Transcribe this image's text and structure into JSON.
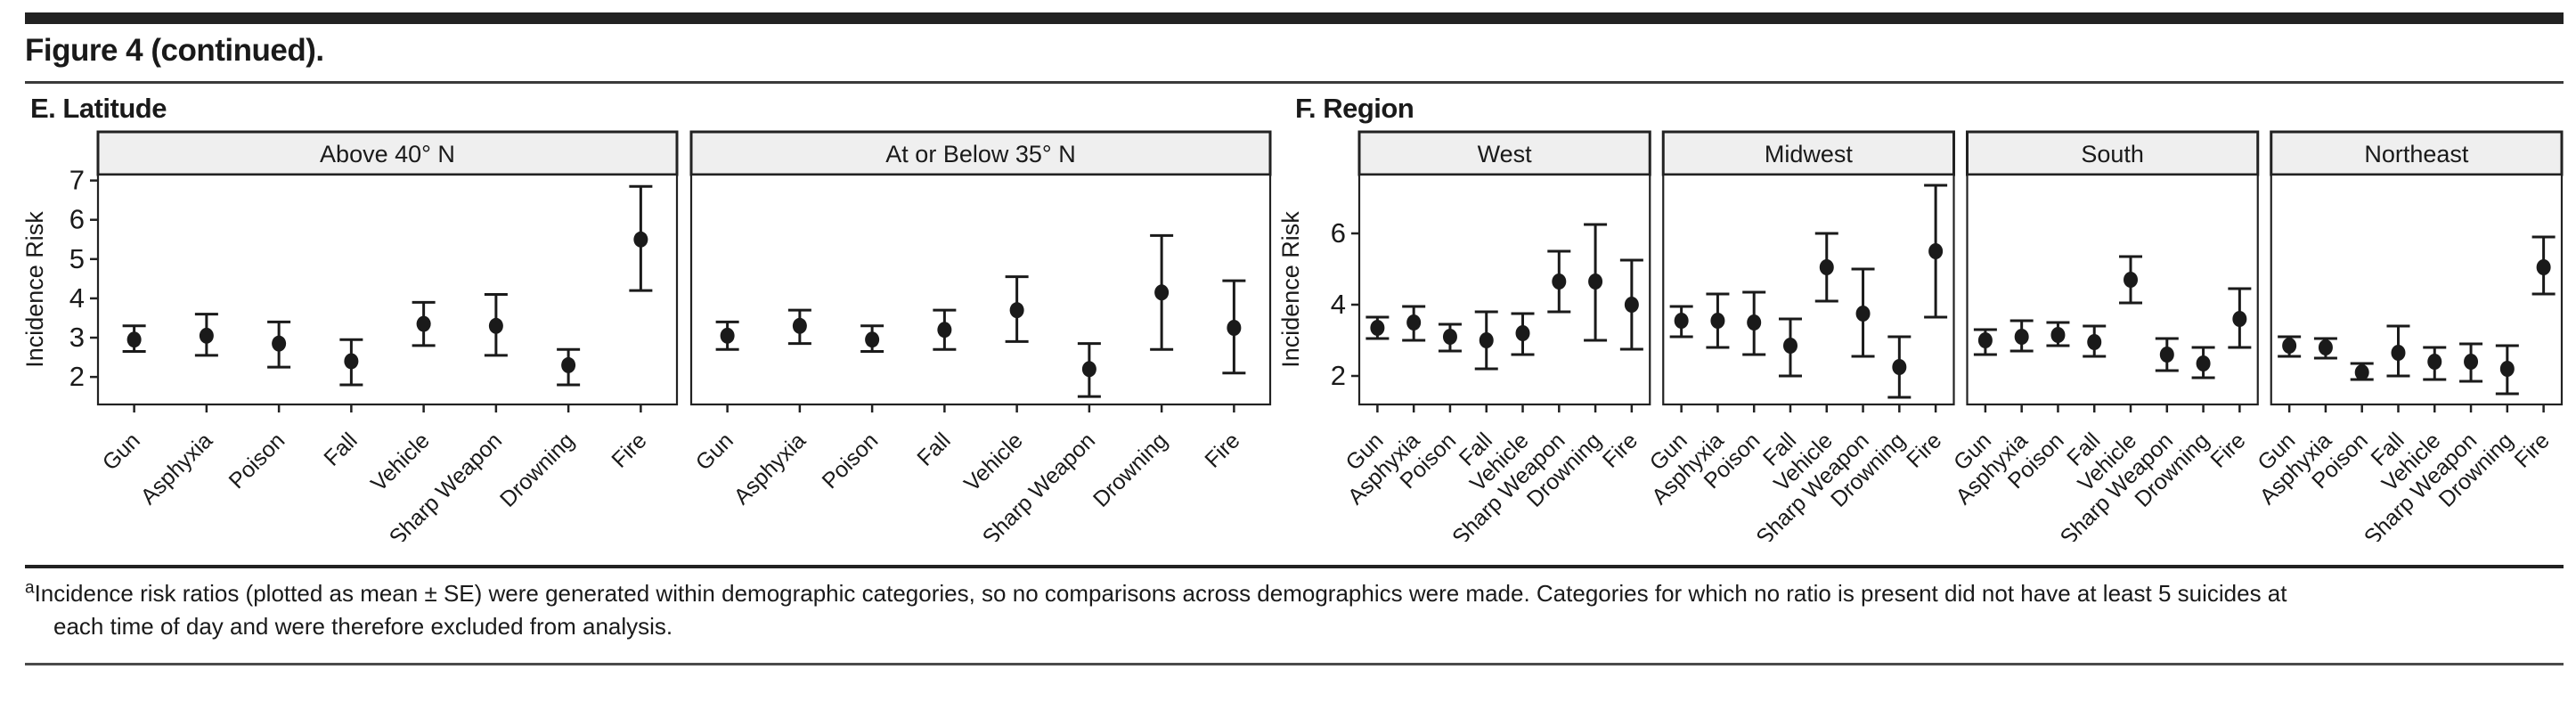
{
  "page": {
    "title": "Figure 4 (continued).",
    "footnote_sup": "a",
    "footnote_line1": "Incidence risk ratios (plotted as mean ± SE) were generated within demographic categories, so no comparisons across demographics were made. Categories for which no ratio is present did not have at least 5 suicides at",
    "footnote_line2": "each time of day and were therefore excluded from analysis."
  },
  "colors": {
    "ink": "#1a1a1a",
    "frame": "#222222",
    "strip_fill": "#efefef",
    "background": "#ffffff"
  },
  "chart_data": [
    {
      "type": "scatter",
      "panel_label": "E. Latitude",
      "point_style": "mean with SE error bars",
      "ylabel": "Incidence Risk",
      "ylim": [
        1.3,
        7.15
      ],
      "yticks": [
        2,
        3,
        4,
        5,
        6,
        7
      ],
      "x_tick_rotation_deg": 45,
      "categories": [
        "Gun",
        "Asphyxia",
        "Poison",
        "Fall",
        "Vehicle",
        "Sharp Weapon",
        "Drowning",
        "Fire"
      ],
      "facets": [
        {
          "label": "Above 40° N",
          "points": [
            {
              "category": "Gun",
              "mean": 2.95,
              "se_low": 2.65,
              "se_high": 3.3
            },
            {
              "category": "Asphyxia",
              "mean": 3.05,
              "se_low": 2.55,
              "se_high": 3.6
            },
            {
              "category": "Poison",
              "mean": 2.85,
              "se_low": 2.25,
              "se_high": 3.4
            },
            {
              "category": "Fall",
              "mean": 2.4,
              "se_low": 1.8,
              "se_high": 2.95
            },
            {
              "category": "Vehicle",
              "mean": 3.35,
              "se_low": 2.8,
              "se_high": 3.9
            },
            {
              "category": "Sharp Weapon",
              "mean": 3.3,
              "se_low": 2.55,
              "se_high": 4.1
            },
            {
              "category": "Drowning",
              "mean": 2.3,
              "se_low": 1.8,
              "se_high": 2.7
            },
            {
              "category": "Fire",
              "mean": 5.5,
              "se_low": 4.2,
              "se_high": 6.85
            }
          ]
        },
        {
          "label": "At or Below 35° N",
          "points": [
            {
              "category": "Gun",
              "mean": 3.05,
              "se_low": 2.7,
              "se_high": 3.4
            },
            {
              "category": "Asphyxia",
              "mean": 3.3,
              "se_low": 2.85,
              "se_high": 3.7
            },
            {
              "category": "Poison",
              "mean": 2.95,
              "se_low": 2.65,
              "se_high": 3.3
            },
            {
              "category": "Fall",
              "mean": 3.2,
              "se_low": 2.7,
              "se_high": 3.7
            },
            {
              "category": "Vehicle",
              "mean": 3.7,
              "se_low": 2.9,
              "se_high": 4.55
            },
            {
              "category": "Sharp Weapon",
              "mean": 2.2,
              "se_low": 1.5,
              "se_high": 2.85
            },
            {
              "category": "Drowning",
              "mean": 4.15,
              "se_low": 2.7,
              "se_high": 5.6
            },
            {
              "category": "Fire",
              "mean": 3.25,
              "se_low": 2.1,
              "se_high": 4.45
            }
          ]
        }
      ]
    },
    {
      "type": "scatter",
      "panel_label": "F. Region",
      "point_style": "mean with SE error bars",
      "ylabel": "Incidence Risk",
      "ylim": [
        1.2,
        7.65
      ],
      "yticks": [
        2,
        4,
        6
      ],
      "x_tick_rotation_deg": 45,
      "categories": [
        "Gun",
        "Asphyxia",
        "Poison",
        "Fall",
        "Vehicle",
        "Sharp Weapon",
        "Drowning",
        "Fire"
      ],
      "facets": [
        {
          "label": "West",
          "points": [
            {
              "category": "Gun",
              "mean": 3.35,
              "se_low": 3.05,
              "se_high": 3.65
            },
            {
              "category": "Asphyxia",
              "mean": 3.5,
              "se_low": 3.0,
              "se_high": 3.95
            },
            {
              "category": "Poison",
              "mean": 3.1,
              "se_low": 2.7,
              "se_high": 3.45
            },
            {
              "category": "Fall",
              "mean": 3.0,
              "se_low": 2.2,
              "se_high": 3.8
            },
            {
              "category": "Vehicle",
              "mean": 3.2,
              "se_low": 2.6,
              "se_high": 3.75
            },
            {
              "category": "Sharp Weapon",
              "mean": 4.65,
              "se_low": 3.8,
              "se_high": 5.5
            },
            {
              "category": "Drowning",
              "mean": 4.65,
              "se_low": 3.0,
              "se_high": 6.25
            },
            {
              "category": "Fire",
              "mean": 4.0,
              "se_low": 2.75,
              "se_high": 5.25
            }
          ]
        },
        {
          "label": "Midwest",
          "points": [
            {
              "category": "Gun",
              "mean": 3.55,
              "se_low": 3.1,
              "se_high": 3.95
            },
            {
              "category": "Asphyxia",
              "mean": 3.55,
              "se_low": 2.8,
              "se_high": 4.3
            },
            {
              "category": "Poison",
              "mean": 3.5,
              "se_low": 2.6,
              "se_high": 4.35
            },
            {
              "category": "Fall",
              "mean": 2.85,
              "se_low": 2.0,
              "se_high": 3.6
            },
            {
              "category": "Vehicle",
              "mean": 5.05,
              "se_low": 4.1,
              "se_high": 6.0
            },
            {
              "category": "Sharp Weapon",
              "mean": 3.75,
              "se_low": 2.55,
              "se_high": 5.0
            },
            {
              "category": "Drowning",
              "mean": 2.25,
              "se_low": 1.4,
              "se_high": 3.1
            },
            {
              "category": "Fire",
              "mean": 5.5,
              "se_low": 3.65,
              "se_high": 7.35
            }
          ]
        },
        {
          "label": "South",
          "points": [
            {
              "category": "Gun",
              "mean": 3.0,
              "se_low": 2.6,
              "se_high": 3.3
            },
            {
              "category": "Asphyxia",
              "mean": 3.1,
              "se_low": 2.7,
              "se_high": 3.55
            },
            {
              "category": "Poison",
              "mean": 3.15,
              "se_low": 2.85,
              "se_high": 3.5
            },
            {
              "category": "Fall",
              "mean": 2.95,
              "se_low": 2.55,
              "se_high": 3.4
            },
            {
              "category": "Vehicle",
              "mean": 4.7,
              "se_low": 4.05,
              "se_high": 5.35
            },
            {
              "category": "Sharp Weapon",
              "mean": 2.6,
              "se_low": 2.15,
              "se_high": 3.05
            },
            {
              "category": "Drowning",
              "mean": 2.35,
              "se_low": 1.95,
              "se_high": 2.8
            },
            {
              "category": "Fire",
              "mean": 3.6,
              "se_low": 2.8,
              "se_high": 4.45
            }
          ]
        },
        {
          "label": "Northeast",
          "points": [
            {
              "category": "Gun",
              "mean": 2.85,
              "se_low": 2.55,
              "se_high": 3.1
            },
            {
              "category": "Asphyxia",
              "mean": 2.8,
              "se_low": 2.5,
              "se_high": 3.05
            },
            {
              "category": "Poison",
              "mean": 2.1,
              "se_low": 1.9,
              "se_high": 2.35
            },
            {
              "category": "Fall",
              "mean": 2.65,
              "se_low": 2.0,
              "se_high": 3.4
            },
            {
              "category": "Vehicle",
              "mean": 2.4,
              "se_low": 1.9,
              "se_high": 2.8
            },
            {
              "category": "Sharp Weapon",
              "mean": 2.4,
              "se_low": 1.85,
              "se_high": 2.9
            },
            {
              "category": "Drowning",
              "mean": 2.2,
              "se_low": 1.5,
              "se_high": 2.85
            },
            {
              "category": "Fire",
              "mean": 5.05,
              "se_low": 4.3,
              "se_high": 5.9
            }
          ]
        }
      ]
    }
  ]
}
